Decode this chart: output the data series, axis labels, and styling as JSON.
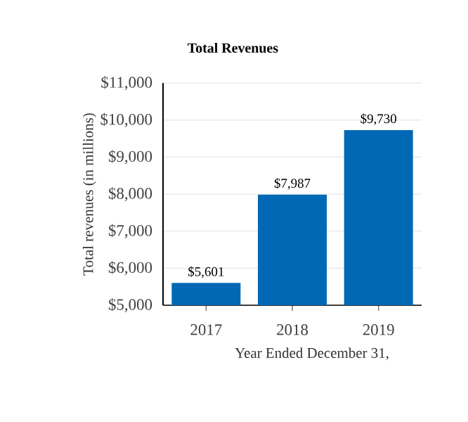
{
  "chart_data": {
    "type": "bar",
    "title": "Total Revenues",
    "xlabel": "Year Ended December 31,",
    "ylabel": "Total revenues (in millions)",
    "categories": [
      "2017",
      "2018",
      "2019"
    ],
    "values": [
      5601,
      7987,
      9730
    ],
    "color": "#0068b4",
    "value_labels": [
      "$5,601",
      "$7,987",
      "$9,730"
    ],
    "ylim": [
      5000,
      11000
    ],
    "yticks": [
      {
        "value": 5000,
        "label": "$5,000"
      },
      {
        "value": 6000,
        "label": "$6,000"
      },
      {
        "value": 7000,
        "label": "$7,000"
      },
      {
        "value": 8000,
        "label": "$8,000"
      },
      {
        "value": 9000,
        "label": "$9,000"
      },
      {
        "value": 10000,
        "label": "$10,000"
      },
      {
        "value": 11000,
        "label": "$11,000"
      }
    ],
    "grid": "y"
  }
}
